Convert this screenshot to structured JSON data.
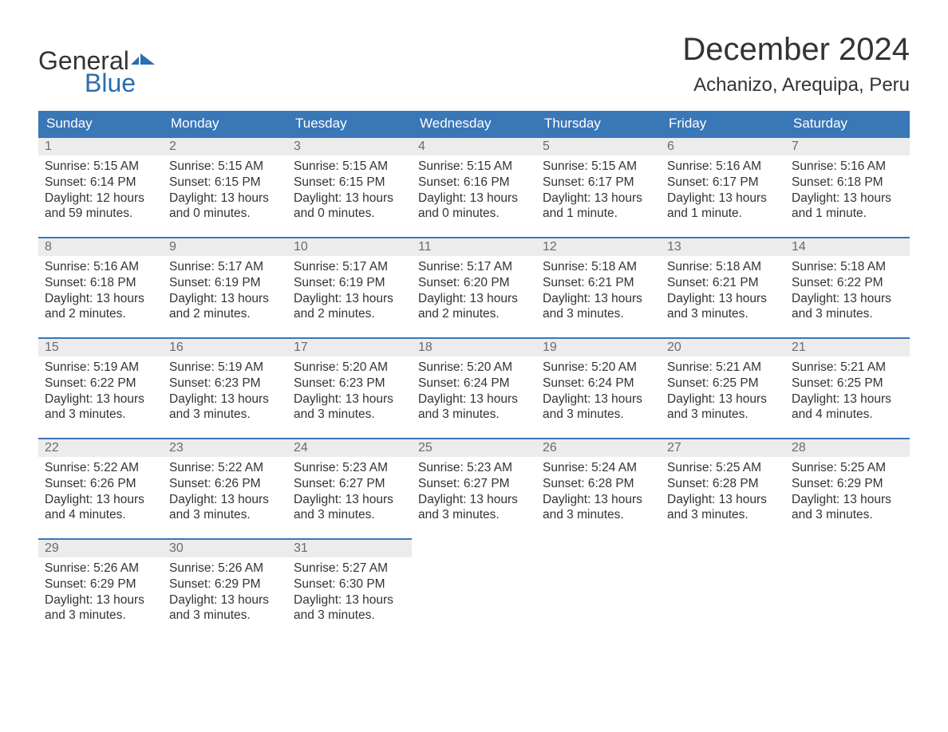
{
  "logo": {
    "line1": "General",
    "line2": "Blue"
  },
  "title": "December 2024",
  "location": "Achanizo, Arequipa, Peru",
  "colors": {
    "header_bg": "#3a77b7",
    "header_text": "#ffffff",
    "day_num_bg": "#ececec",
    "day_num_text": "#6b6b6b",
    "body_text": "#333333",
    "logo_blue": "#2a6db0",
    "page_bg": "#ffffff",
    "cell_border": "#3a77b7"
  },
  "weekdays": [
    "Sunday",
    "Monday",
    "Tuesday",
    "Wednesday",
    "Thursday",
    "Friday",
    "Saturday"
  ],
  "weeks": [
    [
      {
        "n": "1",
        "sunrise": "Sunrise: 5:15 AM",
        "sunset": "Sunset: 6:14 PM",
        "dl1": "Daylight: 12 hours",
        "dl2": "and 59 minutes."
      },
      {
        "n": "2",
        "sunrise": "Sunrise: 5:15 AM",
        "sunset": "Sunset: 6:15 PM",
        "dl1": "Daylight: 13 hours",
        "dl2": "and 0 minutes."
      },
      {
        "n": "3",
        "sunrise": "Sunrise: 5:15 AM",
        "sunset": "Sunset: 6:15 PM",
        "dl1": "Daylight: 13 hours",
        "dl2": "and 0 minutes."
      },
      {
        "n": "4",
        "sunrise": "Sunrise: 5:15 AM",
        "sunset": "Sunset: 6:16 PM",
        "dl1": "Daylight: 13 hours",
        "dl2": "and 0 minutes."
      },
      {
        "n": "5",
        "sunrise": "Sunrise: 5:15 AM",
        "sunset": "Sunset: 6:17 PM",
        "dl1": "Daylight: 13 hours",
        "dl2": "and 1 minute."
      },
      {
        "n": "6",
        "sunrise": "Sunrise: 5:16 AM",
        "sunset": "Sunset: 6:17 PM",
        "dl1": "Daylight: 13 hours",
        "dl2": "and 1 minute."
      },
      {
        "n": "7",
        "sunrise": "Sunrise: 5:16 AM",
        "sunset": "Sunset: 6:18 PM",
        "dl1": "Daylight: 13 hours",
        "dl2": "and 1 minute."
      }
    ],
    [
      {
        "n": "8",
        "sunrise": "Sunrise: 5:16 AM",
        "sunset": "Sunset: 6:18 PM",
        "dl1": "Daylight: 13 hours",
        "dl2": "and 2 minutes."
      },
      {
        "n": "9",
        "sunrise": "Sunrise: 5:17 AM",
        "sunset": "Sunset: 6:19 PM",
        "dl1": "Daylight: 13 hours",
        "dl2": "and 2 minutes."
      },
      {
        "n": "10",
        "sunrise": "Sunrise: 5:17 AM",
        "sunset": "Sunset: 6:19 PM",
        "dl1": "Daylight: 13 hours",
        "dl2": "and 2 minutes."
      },
      {
        "n": "11",
        "sunrise": "Sunrise: 5:17 AM",
        "sunset": "Sunset: 6:20 PM",
        "dl1": "Daylight: 13 hours",
        "dl2": "and 2 minutes."
      },
      {
        "n": "12",
        "sunrise": "Sunrise: 5:18 AM",
        "sunset": "Sunset: 6:21 PM",
        "dl1": "Daylight: 13 hours",
        "dl2": "and 3 minutes."
      },
      {
        "n": "13",
        "sunrise": "Sunrise: 5:18 AM",
        "sunset": "Sunset: 6:21 PM",
        "dl1": "Daylight: 13 hours",
        "dl2": "and 3 minutes."
      },
      {
        "n": "14",
        "sunrise": "Sunrise: 5:18 AM",
        "sunset": "Sunset: 6:22 PM",
        "dl1": "Daylight: 13 hours",
        "dl2": "and 3 minutes."
      }
    ],
    [
      {
        "n": "15",
        "sunrise": "Sunrise: 5:19 AM",
        "sunset": "Sunset: 6:22 PM",
        "dl1": "Daylight: 13 hours",
        "dl2": "and 3 minutes."
      },
      {
        "n": "16",
        "sunrise": "Sunrise: 5:19 AM",
        "sunset": "Sunset: 6:23 PM",
        "dl1": "Daylight: 13 hours",
        "dl2": "and 3 minutes."
      },
      {
        "n": "17",
        "sunrise": "Sunrise: 5:20 AM",
        "sunset": "Sunset: 6:23 PM",
        "dl1": "Daylight: 13 hours",
        "dl2": "and 3 minutes."
      },
      {
        "n": "18",
        "sunrise": "Sunrise: 5:20 AM",
        "sunset": "Sunset: 6:24 PM",
        "dl1": "Daylight: 13 hours",
        "dl2": "and 3 minutes."
      },
      {
        "n": "19",
        "sunrise": "Sunrise: 5:20 AM",
        "sunset": "Sunset: 6:24 PM",
        "dl1": "Daylight: 13 hours",
        "dl2": "and 3 minutes."
      },
      {
        "n": "20",
        "sunrise": "Sunrise: 5:21 AM",
        "sunset": "Sunset: 6:25 PM",
        "dl1": "Daylight: 13 hours",
        "dl2": "and 3 minutes."
      },
      {
        "n": "21",
        "sunrise": "Sunrise: 5:21 AM",
        "sunset": "Sunset: 6:25 PM",
        "dl1": "Daylight: 13 hours",
        "dl2": "and 4 minutes."
      }
    ],
    [
      {
        "n": "22",
        "sunrise": "Sunrise: 5:22 AM",
        "sunset": "Sunset: 6:26 PM",
        "dl1": "Daylight: 13 hours",
        "dl2": "and 4 minutes."
      },
      {
        "n": "23",
        "sunrise": "Sunrise: 5:22 AM",
        "sunset": "Sunset: 6:26 PM",
        "dl1": "Daylight: 13 hours",
        "dl2": "and 3 minutes."
      },
      {
        "n": "24",
        "sunrise": "Sunrise: 5:23 AM",
        "sunset": "Sunset: 6:27 PM",
        "dl1": "Daylight: 13 hours",
        "dl2": "and 3 minutes."
      },
      {
        "n": "25",
        "sunrise": "Sunrise: 5:23 AM",
        "sunset": "Sunset: 6:27 PM",
        "dl1": "Daylight: 13 hours",
        "dl2": "and 3 minutes."
      },
      {
        "n": "26",
        "sunrise": "Sunrise: 5:24 AM",
        "sunset": "Sunset: 6:28 PM",
        "dl1": "Daylight: 13 hours",
        "dl2": "and 3 minutes."
      },
      {
        "n": "27",
        "sunrise": "Sunrise: 5:25 AM",
        "sunset": "Sunset: 6:28 PM",
        "dl1": "Daylight: 13 hours",
        "dl2": "and 3 minutes."
      },
      {
        "n": "28",
        "sunrise": "Sunrise: 5:25 AM",
        "sunset": "Sunset: 6:29 PM",
        "dl1": "Daylight: 13 hours",
        "dl2": "and 3 minutes."
      }
    ],
    [
      {
        "n": "29",
        "sunrise": "Sunrise: 5:26 AM",
        "sunset": "Sunset: 6:29 PM",
        "dl1": "Daylight: 13 hours",
        "dl2": "and 3 minutes."
      },
      {
        "n": "30",
        "sunrise": "Sunrise: 5:26 AM",
        "sunset": "Sunset: 6:29 PM",
        "dl1": "Daylight: 13 hours",
        "dl2": "and 3 minutes."
      },
      {
        "n": "31",
        "sunrise": "Sunrise: 5:27 AM",
        "sunset": "Sunset: 6:30 PM",
        "dl1": "Daylight: 13 hours",
        "dl2": "and 3 minutes."
      },
      null,
      null,
      null,
      null
    ]
  ]
}
